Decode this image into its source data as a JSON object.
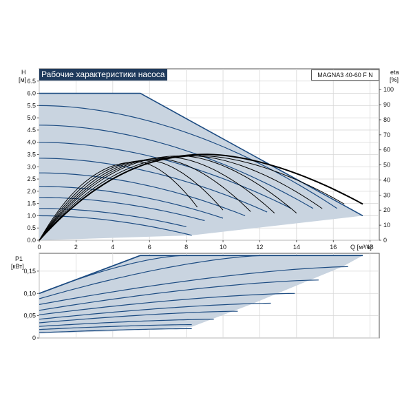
{
  "header": {
    "title": "Рабочие характеристики насоса",
    "model": "MAGNA3 40-60 F N"
  },
  "colors": {
    "envelope_fill": "#c9d4e0",
    "envelope_stroke": "#1d4c82",
    "curve_stroke": "#1d4c82",
    "efficiency_stroke": "#000000",
    "title_bg": "#1f3a5c"
  },
  "chart_data": [
    {
      "type": "line",
      "panel": "head",
      "xlabel": "Q [м³/ч]",
      "ylabel_top": "H",
      "ylabel_unit": "[м]",
      "y2label_top": "eta",
      "y2label_unit": "[%]",
      "xlim": [
        0,
        18.5
      ],
      "ylim": [
        0,
        7.0
      ],
      "y2lim": [
        0,
        100
      ],
      "x_ticks": [
        "0",
        "2",
        "4",
        "6",
        "8",
        "10",
        "12",
        "14",
        "16",
        "18"
      ],
      "y_ticks": [
        "0.0",
        "0.5",
        "1.0",
        "1.5",
        "2.0",
        "2.5",
        "3.0",
        "3.5",
        "4.0",
        "4.5",
        "5.0",
        "5.5",
        "6.0",
        "6.5"
      ],
      "y2_ticks": [
        "0",
        "10",
        "20",
        "30",
        "40",
        "50",
        "60",
        "70",
        "80",
        "90",
        "100"
      ],
      "grid": true,
      "envelope": {
        "x": [
          0,
          5.5,
          17.6,
          0
        ],
        "y": [
          6.0,
          6.0,
          1.0,
          1.0
        ]
      },
      "head_curves": [
        {
          "h0": 5.5,
          "qmax": 16.2,
          "hend": 1.3
        },
        {
          "h0": 4.7,
          "qmax": 14.9,
          "hend": 1.3
        },
        {
          "h0": 4.0,
          "qmax": 13.7,
          "hend": 1.3
        },
        {
          "h0": 3.35,
          "qmax": 12.4,
          "hend": 1.15
        },
        {
          "h0": 2.75,
          "qmax": 11.2,
          "hend": 1.0
        },
        {
          "h0": 2.2,
          "qmax": 10.0,
          "hend": 0.9
        },
        {
          "h0": 1.75,
          "qmax": 9.0,
          "hend": 0.8
        },
        {
          "h0": 1.3,
          "qmax": 8.0,
          "hend": 0.55
        },
        {
          "h0": 1.0,
          "qmax": 8.3,
          "hend": 0.2
        }
      ],
      "efficiency_curves": [
        {
          "qmax": 17.6,
          "peak_q": 9.2,
          "peak_eta": 57,
          "eta_end": 24
        },
        {
          "qmax": 16.6,
          "peak_q": 8.9,
          "peak_eta": 56,
          "eta_end": 24
        },
        {
          "qmax": 15.4,
          "peak_q": 8.4,
          "peak_eta": 56,
          "eta_end": 21
        },
        {
          "qmax": 14.0,
          "peak_q": 7.8,
          "peak_eta": 56,
          "eta_end": 18
        },
        {
          "qmax": 12.8,
          "peak_q": 7.2,
          "peak_eta": 55,
          "eta_end": 18
        },
        {
          "qmax": 11.5,
          "peak_q": 6.6,
          "peak_eta": 54,
          "eta_end": 19
        },
        {
          "qmax": 10.0,
          "peak_q": 6.0,
          "peak_eta": 53,
          "eta_end": 20
        },
        {
          "qmax": 8.6,
          "peak_q": 5.4,
          "peak_eta": 52,
          "eta_end": 22
        }
      ]
    },
    {
      "type": "line",
      "panel": "power",
      "ylabel_top": "P1",
      "ylabel_unit": "[кВт]",
      "xlim": [
        0,
        18.5
      ],
      "ylim": [
        0,
        0.19
      ],
      "y_ticks": [
        "0",
        "0,05",
        "0,10",
        "0,15"
      ],
      "grid": true,
      "envelope": {
        "x": [
          0,
          5.5,
          17.6,
          16.5,
          11.5,
          8.3,
          4.0,
          0
        ],
        "y": [
          0.1,
          0.185,
          0.185,
          0.16,
          0.075,
          0.025,
          0.015,
          0.01
        ]
      },
      "power_curves": [
        {
          "p0": 0.1,
          "pend": 0.185,
          "qmax": 7.8
        },
        {
          "p0": 0.088,
          "pend": 0.185,
          "qmax": 12.2
        },
        {
          "p0": 0.075,
          "pend": 0.16,
          "qmax": 16.8
        },
        {
          "p0": 0.062,
          "pend": 0.13,
          "qmax": 15.2
        },
        {
          "p0": 0.052,
          "pend": 0.1,
          "qmax": 13.9
        },
        {
          "p0": 0.042,
          "pend": 0.078,
          "qmax": 12.6
        },
        {
          "p0": 0.034,
          "pend": 0.06,
          "qmax": 10.8
        },
        {
          "p0": 0.026,
          "pend": 0.042,
          "qmax": 9.5
        },
        {
          "p0": 0.019,
          "pend": 0.03,
          "qmax": 8.3
        },
        {
          "p0": 0.012,
          "pend": 0.021,
          "qmax": 8.3
        }
      ]
    }
  ]
}
